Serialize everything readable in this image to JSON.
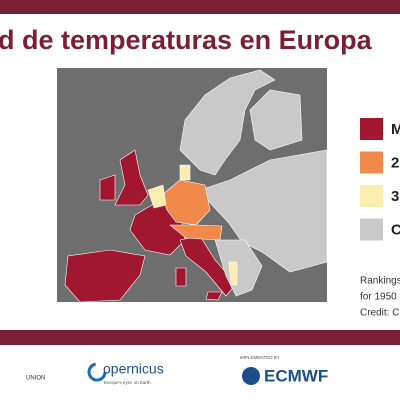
{
  "header": {
    "title": "d de temperaturas en Europa"
  },
  "map_background": "#6e6e6e",
  "legend": [
    {
      "label": "M",
      "color": "#a0172f"
    },
    {
      "label": "2",
      "color": "#f0894a"
    },
    {
      "label": "3",
      "color": "#fbeeb0"
    },
    {
      "label": "C",
      "color": "#c9c9c9"
    }
  ],
  "note": [
    "Rankings",
    "for 1950",
    "Credit: C"
  ],
  "footer": {
    "left": "UNION",
    "copernicus": "opernicus",
    "copernicus_tagline": "Europe's eyes on Earth",
    "implemented_by": "IMPLEMENTED BY",
    "ecmwf": "ECMWF"
  }
}
